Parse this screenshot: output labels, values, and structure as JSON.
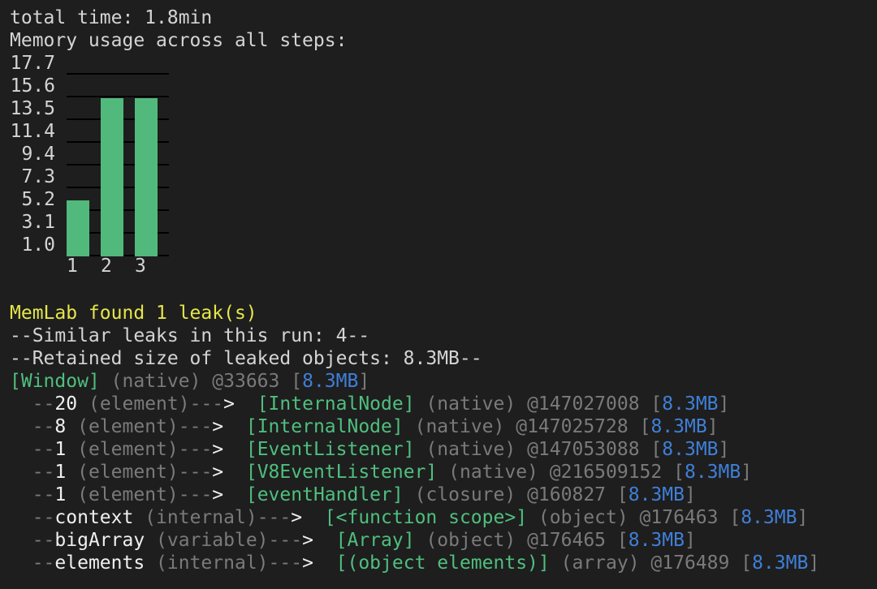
{
  "header": {
    "total_time": "total time: 1.8min",
    "memory_title": "Memory usage across all steps:"
  },
  "chart_data": {
    "type": "bar",
    "title": "Memory usage across all steps:",
    "categories": [
      "1",
      "2",
      "3"
    ],
    "values": [
      6.0,
      15.4,
      15.4
    ],
    "y_ticks": [
      "17.7",
      "15.6",
      "13.5",
      "11.4",
      "9.4",
      "7.3",
      "5.2",
      "3.1",
      "1.0"
    ],
    "ylim": [
      1.0,
      17.7
    ],
    "grid": true,
    "bar_color": "#52b97c"
  },
  "leak": {
    "found": "MemLab found 1 leak(s)",
    "similar": "--Similar leaks in this run: 4--",
    "retained": "--Retained size of leaked objects: 8.3MB--",
    "root": {
      "name": "[Window]",
      "type": "(native)",
      "id": "@33663",
      "size": "8.3MB"
    },
    "trace": [
      {
        "edge": "20",
        "edge_type": "(element)",
        "name": "[InternalNode]",
        "type": "(native)",
        "id": "@147027008",
        "size": "8.3MB"
      },
      {
        "edge": "8",
        "edge_type": "(element)",
        "name": "[InternalNode]",
        "type": "(native)",
        "id": "@147025728",
        "size": "8.3MB"
      },
      {
        "edge": "1",
        "edge_type": "(element)",
        "name": "[EventListener]",
        "type": "(native)",
        "id": "@147053088",
        "size": "8.3MB"
      },
      {
        "edge": "1",
        "edge_type": "(element)",
        "name": "[V8EventListener]",
        "type": "(native)",
        "id": "@216509152",
        "size": "8.3MB"
      },
      {
        "edge": "1",
        "edge_type": "(element)",
        "name": "[eventHandler]",
        "type": "(closure)",
        "id": "@160827",
        "size": "8.3MB"
      },
      {
        "edge": "context",
        "edge_type": "(internal)",
        "name": "[<function scope>]",
        "type": "(object)",
        "id": "@176463",
        "size": "8.3MB"
      },
      {
        "edge": "bigArray",
        "edge_type": "(variable)",
        "name": "[Array]",
        "type": "(object)",
        "id": "@176465",
        "size": "8.3MB"
      },
      {
        "edge": "elements",
        "edge_type": "(internal)",
        "name": "[(object elements)]",
        "type": "(array)",
        "id": "@176489",
        "size": "8.3MB"
      }
    ]
  },
  "colors": {
    "background": "#1e1e1e",
    "text": "#d4d4d4",
    "highlight": "#e5e54b",
    "node": "#4fbf7e",
    "size": "#3f7fd8",
    "muted": "#7a7a7a"
  }
}
